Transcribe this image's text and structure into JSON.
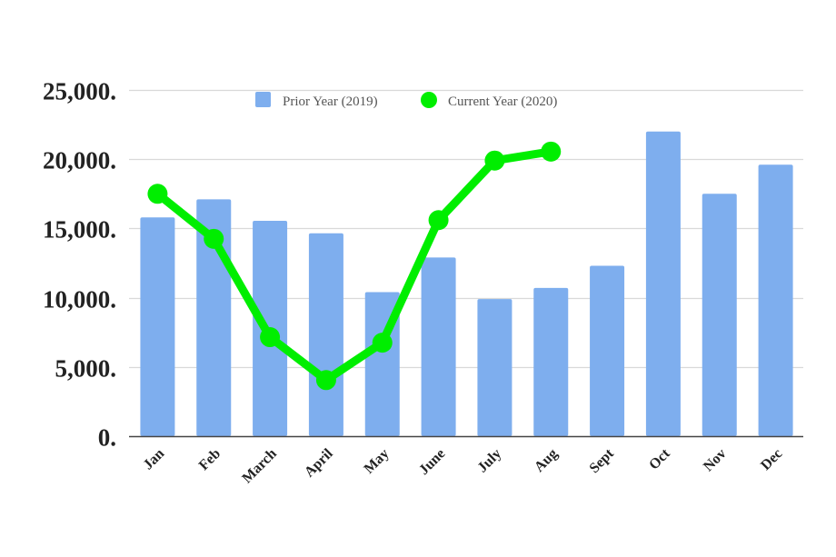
{
  "chart_data": {
    "type": "bar",
    "title": "",
    "xlabel": "",
    "ylabel": "",
    "categories": [
      "Jan",
      "Feb",
      "March",
      "April",
      "May",
      "June",
      "July",
      "Aug",
      "Sept",
      "Oct",
      "Nov",
      "Dec"
    ],
    "series": [
      {
        "name": "Prior Year (2019)",
        "type": "bar",
        "color": "#7eaeee",
        "values": [
          15800,
          17100,
          15550,
          14650,
          10400,
          12900,
          9900,
          10700,
          12300,
          22000,
          17500,
          19600
        ]
      },
      {
        "name": "Current Year (2020)",
        "type": "line",
        "color": "#00ee00",
        "values": [
          17500,
          14250,
          7150,
          4050,
          6750,
          15600,
          19900,
          20550,
          null,
          null,
          null,
          null
        ]
      }
    ],
    "ylim": [
      0,
      25000
    ],
    "yticks": [
      0,
      5000,
      10000,
      15000,
      20000,
      25000
    ],
    "ytick_labels": [
      "0.",
      "5,000.",
      "10,000.",
      "15,000.",
      "20,000.",
      "25,000."
    ],
    "grid": true,
    "legend_position": "top"
  },
  "legend": {
    "items": [
      {
        "label": "Prior Year (2019)",
        "marker": "square",
        "color": "#7eaeee"
      },
      {
        "label": "Current Year (2020)",
        "marker": "circle",
        "color": "#00ee00"
      }
    ]
  }
}
